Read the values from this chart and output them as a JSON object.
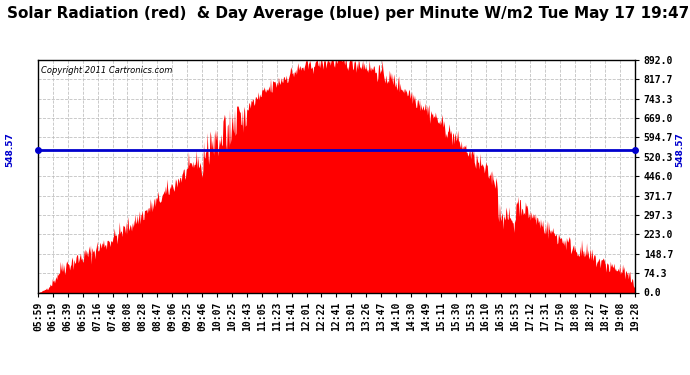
{
  "title": "Solar Radiation (red)  & Day Average (blue) per Minute W/m2 Tue May 17 19:47",
  "copyright_text": "Copyright 2011 Cartronics.com",
  "average_value": 548.57,
  "y_max": 892.0,
  "y_min": 0.0,
  "y_ticks": [
    0.0,
    74.3,
    148.7,
    223.0,
    297.3,
    371.7,
    446.0,
    520.3,
    594.7,
    669.0,
    743.3,
    817.7,
    892.0
  ],
  "x_labels": [
    "05:59",
    "06:19",
    "06:39",
    "06:59",
    "07:16",
    "07:46",
    "08:08",
    "08:28",
    "08:47",
    "09:06",
    "09:25",
    "09:46",
    "10:07",
    "10:25",
    "10:43",
    "11:05",
    "11:23",
    "11:41",
    "12:01",
    "12:22",
    "12:41",
    "13:01",
    "13:26",
    "13:47",
    "14:10",
    "14:30",
    "14:49",
    "15:11",
    "15:30",
    "15:53",
    "16:10",
    "16:35",
    "16:53",
    "17:12",
    "17:31",
    "17:50",
    "18:08",
    "18:27",
    "18:47",
    "19:08",
    "19:28"
  ],
  "fill_color": "#FF0000",
  "line_color": "#0000CD",
  "background_color": "#FFFFFF",
  "plot_bg_color": "#FFFFFF",
  "grid_color": "#BBBBBB",
  "title_fontsize": 11,
  "tick_fontsize": 7,
  "n_points": 830
}
